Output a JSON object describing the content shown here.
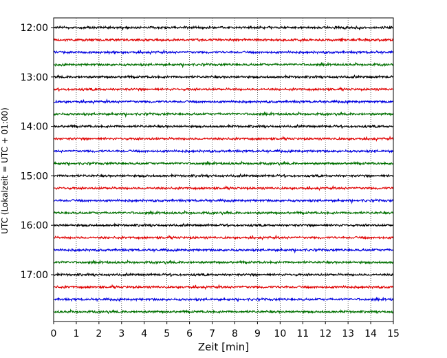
{
  "chart_data": {
    "type": "line",
    "title": "",
    "xlabel": "Zeit  [min]",
    "ylabel": "UTC (Lokalzeit = UTC + 01:00)",
    "xlim": [
      0,
      15
    ],
    "x_ticks": [
      "0",
      "1",
      "2",
      "3",
      "4",
      "5",
      "6",
      "7",
      "8",
      "9",
      "10",
      "11",
      "12",
      "13",
      "14",
      "15"
    ],
    "y_tick_labels": [
      "12:00",
      "13:00",
      "14:00",
      "15:00",
      "16:00",
      "17:00"
    ],
    "grid": "vertical dotted",
    "trace_interval_min": 15,
    "trace_start": "12:00",
    "trace_colors": [
      "#000000",
      "#e00000",
      "#0000e0",
      "#007000"
    ],
    "traces": [
      {
        "start": "12:00",
        "color": "#000000"
      },
      {
        "start": "12:15",
        "color": "#e00000"
      },
      {
        "start": "12:30",
        "color": "#0000e0"
      },
      {
        "start": "12:45",
        "color": "#007000"
      },
      {
        "start": "13:00",
        "color": "#000000"
      },
      {
        "start": "13:15",
        "color": "#e00000"
      },
      {
        "start": "13:30",
        "color": "#0000e0"
      },
      {
        "start": "13:45",
        "color": "#007000"
      },
      {
        "start": "14:00",
        "color": "#000000"
      },
      {
        "start": "14:15",
        "color": "#e00000"
      },
      {
        "start": "14:30",
        "color": "#0000e0"
      },
      {
        "start": "14:45",
        "color": "#007000"
      },
      {
        "start": "15:00",
        "color": "#000000"
      },
      {
        "start": "15:15",
        "color": "#e00000"
      },
      {
        "start": "15:30",
        "color": "#0000e0"
      },
      {
        "start": "15:45",
        "color": "#007000"
      },
      {
        "start": "16:00",
        "color": "#000000"
      },
      {
        "start": "16:15",
        "color": "#e00000"
      },
      {
        "start": "16:30",
        "color": "#0000e0"
      },
      {
        "start": "16:45",
        "color": "#007000"
      },
      {
        "start": "17:00",
        "color": "#000000"
      },
      {
        "start": "17:15",
        "color": "#e00000"
      },
      {
        "start": "17:30",
        "color": "#0000e0"
      },
      {
        "start": "17:45",
        "color": "#007000"
      }
    ]
  }
}
